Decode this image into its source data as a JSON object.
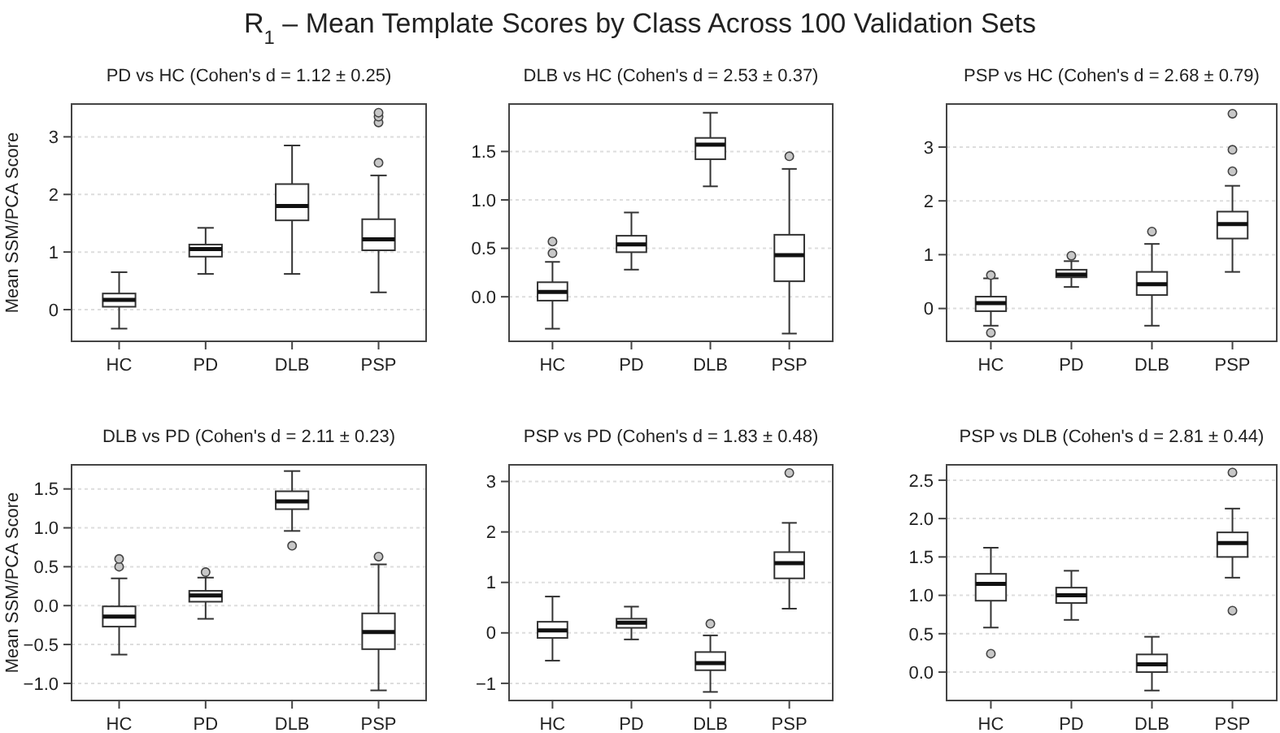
{
  "chart_data": [
    {
      "type": "box",
      "title": "R$_{1}$ – Mean Template Scores by Class Across 100 Validation Sets",
      "subtitle": "PD vs HC  (Cohen's d = 1.12 ± 0.25)",
      "ylabel": "Mean SSM/PCA Score",
      "categories": [
        "HC",
        "PD",
        "DLB",
        "PSP"
      ],
      "ylim": [
        -0.55,
        3.57
      ],
      "yticks": [
        0,
        1,
        2,
        3
      ],
      "grid": "y",
      "boxes": [
        {
          "low": -0.33,
          "q1": 0.05,
          "median": 0.17,
          "q3": 0.28,
          "high": 0.65
        },
        {
          "low": 0.62,
          "q1": 0.92,
          "median": 1.05,
          "q3": 1.13,
          "high": 1.42
        },
        {
          "low": 0.62,
          "q1": 1.55,
          "median": 1.8,
          "q3": 2.18,
          "high": 2.85
        },
        {
          "low": 0.3,
          "q1": 1.03,
          "median": 1.22,
          "q3": 1.57,
          "high": 2.33,
          "outliers": [
            2.55,
            3.25,
            3.35,
            3.42
          ]
        }
      ]
    },
    {
      "type": "box",
      "subtitle": "DLB vs HC  (Cohen's d = 2.53 ± 0.37)",
      "categories": [
        "HC",
        "PD",
        "DLB",
        "PSP"
      ],
      "ylim": [
        -0.46,
        1.99
      ],
      "yticks": [
        {
          "value": 0,
          "label": "0.0"
        },
        0.5,
        {
          "value": 1,
          "label": "1.0"
        },
        1.5
      ],
      "grid": "y",
      "boxes": [
        {
          "low": -0.33,
          "q1": -0.04,
          "median": 0.05,
          "q3": 0.15,
          "high": 0.36,
          "outliers": [
            0.45,
            0.57
          ]
        },
        {
          "low": 0.28,
          "q1": 0.46,
          "median": 0.54,
          "q3": 0.63,
          "high": 0.87
        },
        {
          "low": 1.14,
          "q1": 1.42,
          "median": 1.57,
          "q3": 1.64,
          "high": 1.9
        },
        {
          "low": -0.38,
          "q1": 0.16,
          "median": 0.43,
          "q3": 0.64,
          "high": 1.32,
          "outliers": [
            1.45
          ]
        }
      ]
    },
    {
      "type": "box",
      "subtitle": "PSP vs HC  (Cohen's d = 2.68 ± 0.79)",
      "categories": [
        "HC",
        "PD",
        "DLB",
        "PSP"
      ],
      "ylim": [
        -0.61,
        3.8
      ],
      "yticks": [
        0,
        1,
        2,
        3
      ],
      "grid": "y",
      "boxes": [
        {
          "low": -0.32,
          "q1": -0.05,
          "median": 0.1,
          "q3": 0.22,
          "high": 0.56,
          "outliers": [
            -0.45,
            0.62
          ]
        },
        {
          "low": 0.4,
          "q1": 0.58,
          "median": 0.63,
          "q3": 0.72,
          "high": 0.88,
          "outliers": [
            0.98
          ]
        },
        {
          "low": -0.32,
          "q1": 0.25,
          "median": 0.45,
          "q3": 0.68,
          "high": 1.2,
          "outliers": [
            1.43
          ]
        },
        {
          "low": 0.68,
          "q1": 1.3,
          "median": 1.57,
          "q3": 1.8,
          "high": 2.28,
          "outliers": [
            2.55,
            2.95,
            3.62
          ]
        }
      ]
    },
    {
      "type": "box",
      "subtitle": "DLB vs PD  (Cohen's d = 2.11 ± 0.23)",
      "ylabel": "Mean SSM/PCA Score",
      "categories": [
        "HC",
        "PD",
        "DLB",
        "PSP"
      ],
      "ylim": [
        -1.22,
        1.81
      ],
      "yticks": [
        {
          "value": -1,
          "label": "−1.0"
        },
        {
          "value": -0.5,
          "label": "−0.5"
        },
        {
          "value": 0,
          "label": "0.0"
        },
        0.5,
        {
          "value": 1,
          "label": "1.0"
        },
        1.5
      ],
      "grid": "y",
      "boxes": [
        {
          "low": -0.63,
          "q1": -0.27,
          "median": -0.14,
          "q3": -0.01,
          "high": 0.35,
          "outliers": [
            0.5,
            0.6
          ]
        },
        {
          "low": -0.17,
          "q1": 0.05,
          "median": 0.13,
          "q3": 0.19,
          "high": 0.36,
          "outliers": [
            0.43
          ]
        },
        {
          "low": 0.96,
          "q1": 1.24,
          "median": 1.34,
          "q3": 1.47,
          "high": 1.73,
          "outliers": [
            0.77
          ]
        },
        {
          "low": -1.09,
          "q1": -0.56,
          "median": -0.34,
          "q3": -0.1,
          "high": 0.53,
          "outliers": [
            0.63
          ]
        }
      ]
    },
    {
      "type": "box",
      "subtitle": "PSP vs PD  (Cohen's d = 1.83 ± 0.48)",
      "categories": [
        "HC",
        "PD",
        "DLB",
        "PSP"
      ],
      "ylim": [
        -1.34,
        3.33
      ],
      "yticks": [
        {
          "value": -1,
          "label": "−1"
        },
        0,
        1,
        2,
        3
      ],
      "grid": "y",
      "boxes": [
        {
          "low": -0.55,
          "q1": -0.1,
          "median": 0.05,
          "q3": 0.22,
          "high": 0.72
        },
        {
          "low": -0.13,
          "q1": 0.1,
          "median": 0.2,
          "q3": 0.28,
          "high": 0.52
        },
        {
          "low": -1.17,
          "q1": -0.74,
          "median": -0.6,
          "q3": -0.38,
          "high": -0.05,
          "outliers": [
            0.18
          ]
        },
        {
          "low": 0.48,
          "q1": 1.08,
          "median": 1.38,
          "q3": 1.6,
          "high": 2.18,
          "outliers": [
            3.17
          ]
        }
      ]
    },
    {
      "type": "box",
      "subtitle": "PSP vs DLB  (Cohen's d = 2.81 ± 0.44)",
      "categories": [
        "HC",
        "PD",
        "DLB",
        "PSP"
      ],
      "ylim": [
        -0.37,
        2.7
      ],
      "yticks": [
        {
          "value": 0,
          "label": "0.0"
        },
        0.5,
        {
          "value": 1,
          "label": "1.0"
        },
        1.5,
        {
          "value": 2,
          "label": "2.0"
        },
        2.5
      ],
      "grid": "y",
      "boxes": [
        {
          "low": 0.58,
          "q1": 0.93,
          "median": 1.15,
          "q3": 1.28,
          "high": 1.62,
          "outliers": [
            0.24
          ]
        },
        {
          "low": 0.68,
          "q1": 0.9,
          "median": 1.0,
          "q3": 1.1,
          "high": 1.32
        },
        {
          "low": -0.24,
          "q1": 0.0,
          "median": 0.1,
          "q3": 0.23,
          "high": 0.46
        },
        {
          "low": 1.23,
          "q1": 1.5,
          "median": 1.68,
          "q3": 1.82,
          "high": 2.13,
          "outliers": [
            0.8,
            2.6
          ]
        }
      ]
    }
  ]
}
